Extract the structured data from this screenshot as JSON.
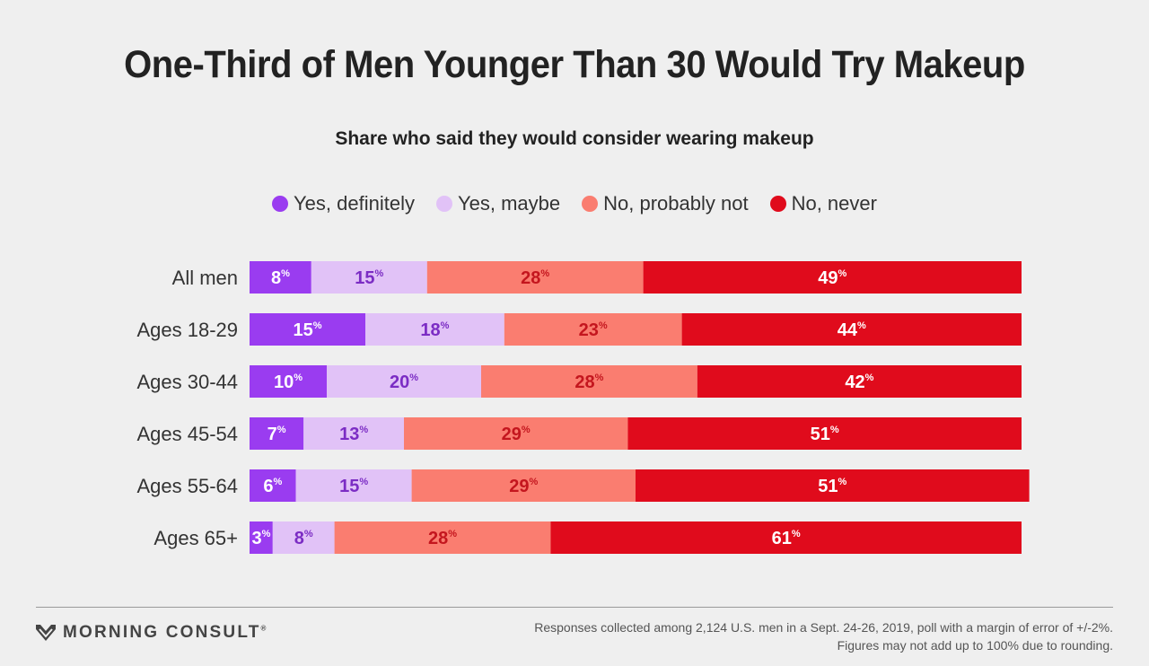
{
  "chart_data": {
    "type": "bar",
    "orientation": "horizontal",
    "stacked": true,
    "title": "One-Third of Men Younger Than 30 Would Try Makeup",
    "subtitle": "Share who said they would consider wearing makeup",
    "categories": [
      "All men",
      "Ages 18-29",
      "Ages 30-44",
      "Ages 45-54",
      "Ages 55-64",
      "Ages 65+"
    ],
    "series": [
      {
        "name": "Yes, definitely",
        "color": "#9a3cf0",
        "label_color": "#ffffff",
        "values": [
          8,
          15,
          10,
          7,
          6,
          3
        ]
      },
      {
        "name": "Yes, maybe",
        "color": "#e1c2f7",
        "label_color": "#7b2cc4",
        "values": [
          15,
          18,
          20,
          13,
          15,
          8
        ]
      },
      {
        "name": "No, probably not",
        "color": "#fa7d70",
        "label_color": "#c4161e",
        "values": [
          28,
          23,
          28,
          29,
          29,
          28
        ]
      },
      {
        "name": "No, never",
        "color": "#e00b1c",
        "label_color": "#ffffff",
        "values": [
          49,
          44,
          42,
          51,
          51,
          61
        ]
      }
    ],
    "percent_sign": "%",
    "xlim": [
      0,
      100
    ],
    "grid": false,
    "legend_position": "top"
  },
  "footer": {
    "brand": "MORNING CONSULT",
    "brand_mark": "®",
    "note_line1": "Responses collected among 2,124 U.S. men in a Sept. 24-26, 2019, poll with a margin of error of +/-2%.",
    "note_line2": "Figures may not add up to 100% due to rounding."
  }
}
